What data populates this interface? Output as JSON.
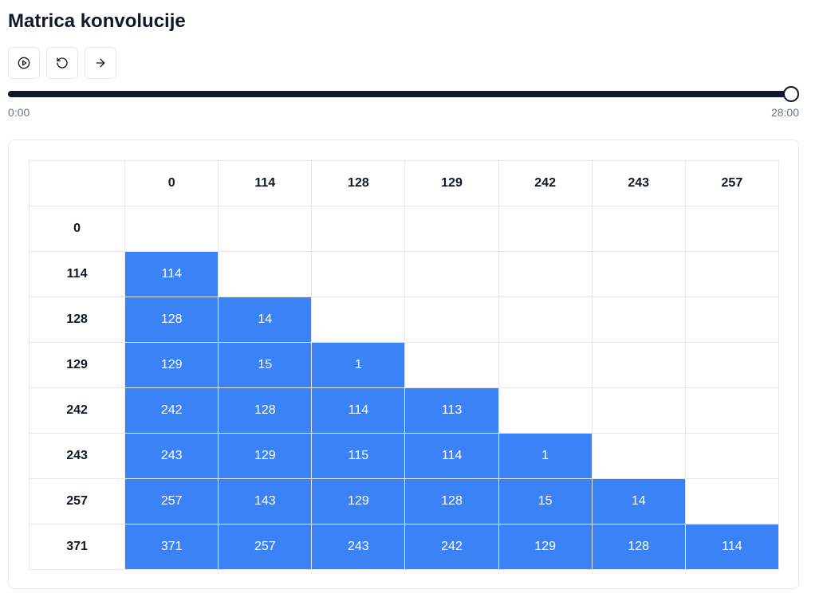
{
  "title": "Matrica konvolucije",
  "controls": {
    "play_icon": "play-circle-icon",
    "reset_icon": "rotate-ccw-icon",
    "step_icon": "arrow-right-icon"
  },
  "slider": {
    "progress": 1.0,
    "start_label": "0:00",
    "end_label": "28:00"
  },
  "colors": {
    "filled_cell": "#3b82f6",
    "track": "#0f172a"
  },
  "matrix": {
    "corner": "",
    "columns": [
      "0",
      "114",
      "128",
      "129",
      "242",
      "243",
      "257"
    ],
    "rows": [
      {
        "label": "0",
        "cells": [
          "",
          "",
          "",
          "",
          "",
          "",
          ""
        ]
      },
      {
        "label": "114",
        "cells": [
          "114",
          "",
          "",
          "",
          "",
          "",
          ""
        ]
      },
      {
        "label": "128",
        "cells": [
          "128",
          "14",
          "",
          "",
          "",
          "",
          ""
        ]
      },
      {
        "label": "129",
        "cells": [
          "129",
          "15",
          "1",
          "",
          "",
          "",
          ""
        ]
      },
      {
        "label": "242",
        "cells": [
          "242",
          "128",
          "114",
          "113",
          "",
          "",
          ""
        ]
      },
      {
        "label": "243",
        "cells": [
          "243",
          "129",
          "115",
          "114",
          "1",
          "",
          ""
        ]
      },
      {
        "label": "257",
        "cells": [
          "257",
          "143",
          "129",
          "128",
          "15",
          "14",
          ""
        ]
      },
      {
        "label": "371",
        "cells": [
          "371",
          "257",
          "243",
          "242",
          "129",
          "128",
          "114"
        ]
      }
    ]
  }
}
